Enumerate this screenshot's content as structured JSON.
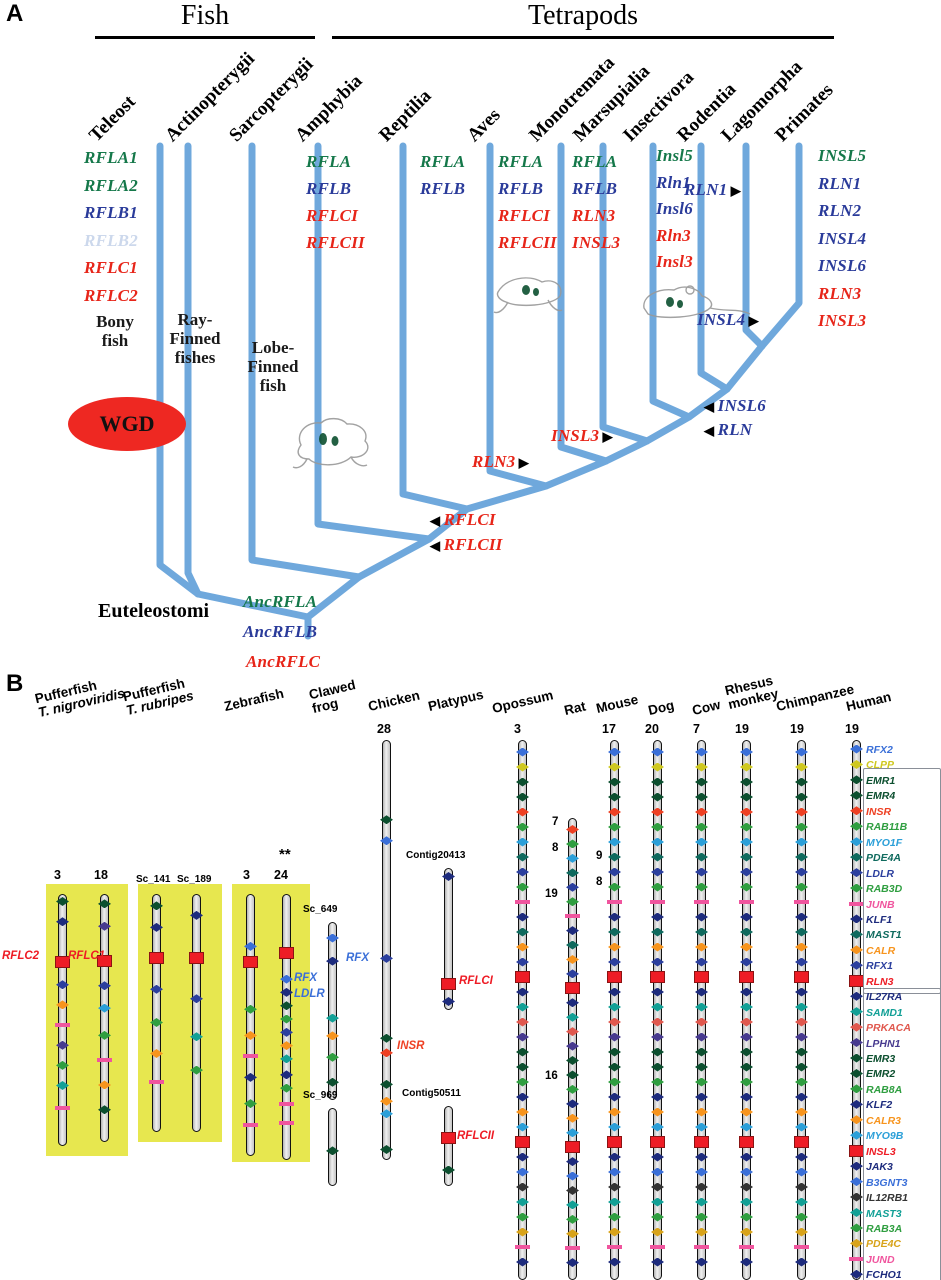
{
  "panelA": {
    "label": "A",
    "groups": [
      {
        "label": "Fish"
      },
      {
        "label": "Tetrapods"
      }
    ],
    "colors": {
      "green": "#15784a",
      "blue": "#2a3b9a",
      "red": "#e72519",
      "pale": "#ccd8ec"
    },
    "taxa": [
      "Teleost",
      "Actinopterygii",
      "Sarcopterygii",
      "Amphybia",
      "Reptilia",
      "Aves",
      "Monotremata",
      "Marsupialia",
      "Insectivora",
      "Rodentia",
      "Lagomorpha",
      "Primates"
    ],
    "gene_columns": [
      {
        "id": "teleost",
        "genes": [
          {
            "t": "RFLA1",
            "c": "green"
          },
          {
            "t": "RFLA2",
            "c": "green"
          },
          {
            "t": "RFLB1",
            "c": "blue"
          },
          {
            "t": "RFLB2",
            "c": "pale"
          },
          {
            "t": "RFLC1",
            "c": "red"
          },
          {
            "t": "RFLC2",
            "c": "red"
          }
        ]
      },
      {
        "id": "amphybia",
        "genes": [
          {
            "t": "RFLA",
            "c": "green"
          },
          {
            "t": "RFLB",
            "c": "blue"
          },
          {
            "t": "RFLCI",
            "c": "red"
          },
          {
            "t": "RFLCII",
            "c": "red"
          }
        ]
      },
      {
        "id": "reptilia",
        "genes": [
          {
            "t": "RFLA",
            "c": "green"
          },
          {
            "t": "RFLB",
            "c": "blue"
          }
        ]
      },
      {
        "id": "aves",
        "genes": [
          {
            "t": "RFLA",
            "c": "green"
          },
          {
            "t": "RFLB",
            "c": "blue"
          },
          {
            "t": "RFLCI",
            "c": "red"
          },
          {
            "t": "RFLCII",
            "c": "red"
          }
        ]
      },
      {
        "id": "marsupialia",
        "genes": [
          {
            "t": "RFLA",
            "c": "green"
          },
          {
            "t": "RFLB",
            "c": "blue"
          },
          {
            "t": "RLN3",
            "c": "red"
          },
          {
            "t": "INSL3",
            "c": "red"
          }
        ]
      },
      {
        "id": "insectivora",
        "genes": [
          {
            "t": "Insl5",
            "c": "green"
          },
          {
            "t": "Rln1",
            "c": "blue"
          },
          {
            "t": "Insl6",
            "c": "blue"
          },
          {
            "t": "Rln3",
            "c": "red"
          },
          {
            "t": "Insl3",
            "c": "red"
          }
        ]
      },
      {
        "id": "primates",
        "genes": [
          {
            "t": "INSL5",
            "c": "green"
          },
          {
            "t": "RLN1",
            "c": "blue"
          },
          {
            "t": "RLN2",
            "c": "blue"
          },
          {
            "t": "INSL4",
            "c": "blue"
          },
          {
            "t": "INSL6",
            "c": "blue"
          },
          {
            "t": "RLN3",
            "c": "red"
          },
          {
            "t": "INSL3",
            "c": "red"
          }
        ]
      }
    ],
    "annotations": [
      {
        "id": "rln1-lago",
        "t": "RLN1",
        "c": "blue",
        "arrow": "right"
      },
      {
        "id": "insl4",
        "t": "INSL4",
        "c": "blue",
        "arrow": "right"
      },
      {
        "id": "insl6",
        "t": "INSL6",
        "c": "blue",
        "arrow": "left"
      },
      {
        "id": "rln",
        "t": "RLN",
        "c": "blue",
        "arrow": "left"
      },
      {
        "id": "insl3-node",
        "t": "INSL3",
        "c": "red",
        "arrow": "right"
      },
      {
        "id": "rln3-node",
        "t": "RLN3",
        "c": "red",
        "arrow": "right"
      },
      {
        "id": "rflci-node",
        "t": "RFLCI",
        "c": "red",
        "arrow": "left"
      },
      {
        "id": "rflcii-node",
        "t": "RFLCII",
        "c": "red",
        "arrow": "left"
      },
      {
        "id": "anc-rfla",
        "t": "AncRFLA",
        "c": "green"
      },
      {
        "id": "anc-rflb",
        "t": "AncRFLB",
        "c": "blue"
      },
      {
        "id": "anc-rflc",
        "t": "AncRFLC",
        "c": "red"
      }
    ],
    "labels": {
      "wgd": "WGD",
      "euteleostomi": "Euteleostomi",
      "bony": [
        "Bony",
        "fish"
      ],
      "ray": [
        "Ray-",
        "Finned",
        "fishes"
      ],
      "lobe": [
        "Lobe-",
        "Finned",
        "fish"
      ]
    }
  },
  "panelB": {
    "label": "B",
    "palette": {
      "blue": "#2b3f9e",
      "medblue": "#3a6fd8",
      "ltblue": "#2b9fd8",
      "navy": "#1d2b7d",
      "purple": "#473a8f",
      "dkgreen": "#0c4f2f",
      "green": "#2f9e40",
      "teal": "#12a096",
      "dkteal": "#0f6a5e",
      "yellow": "#cfc820",
      "orange": "#f7941d",
      "gold": "#d8a31a",
      "red": "#ee1c25",
      "redorange": "#ee4023",
      "pink": "#f0559e",
      "salmon": "#e0584e",
      "dark": "#333333"
    },
    "human_genes": [
      {
        "n": "RFX2",
        "c": "medblue",
        "s": "d"
      },
      {
        "n": "CLPP",
        "c": "yellow",
        "s": "d"
      },
      {
        "n": "EMR1",
        "c": "dkgreen",
        "s": "d"
      },
      {
        "n": "EMR4",
        "c": "dkgreen",
        "s": "d"
      },
      {
        "n": "INSR",
        "c": "redorange",
        "s": "d"
      },
      {
        "n": "RAB11B",
        "c": "green",
        "s": "d"
      },
      {
        "n": "MYO1F",
        "c": "ltblue",
        "s": "d"
      },
      {
        "n": "PDE4A",
        "c": "dkteal",
        "s": "d"
      },
      {
        "n": "LDLR",
        "c": "blue",
        "s": "d"
      },
      {
        "n": "RAB3D",
        "c": "green",
        "s": "d"
      },
      {
        "n": "JUNB",
        "c": "pink",
        "s": "b"
      },
      {
        "n": "KLF1",
        "c": "navy",
        "s": "d"
      },
      {
        "n": "MAST1",
        "c": "dkteal",
        "s": "d"
      },
      {
        "n": "CALR",
        "c": "orange",
        "s": "d"
      },
      {
        "n": "RFX1",
        "c": "blue",
        "s": "d"
      },
      {
        "n": "RLN3",
        "c": "red",
        "s": "s"
      },
      {
        "n": "IL27RA",
        "c": "navy",
        "s": "d"
      },
      {
        "n": "SAMD1",
        "c": "teal",
        "s": "d"
      },
      {
        "n": "PRKACA",
        "c": "salmon",
        "s": "d"
      },
      {
        "n": "LPHN1",
        "c": "purple",
        "s": "d"
      },
      {
        "n": "EMR3",
        "c": "dkgreen",
        "s": "d"
      },
      {
        "n": "EMR2",
        "c": "dkgreen",
        "s": "d"
      },
      {
        "n": "RAB8A",
        "c": "green",
        "s": "d"
      },
      {
        "n": "KLF2",
        "c": "navy",
        "s": "d"
      },
      {
        "n": "CALR3",
        "c": "orange",
        "s": "d"
      },
      {
        "n": "MYO9B",
        "c": "ltblue",
        "s": "d"
      },
      {
        "n": "INSL3",
        "c": "red",
        "s": "s"
      },
      {
        "n": "JAK3",
        "c": "navy",
        "s": "d"
      },
      {
        "n": "B3GNT3",
        "c": "medblue",
        "s": "d"
      },
      {
        "n": "IL12RB1",
        "c": "dark",
        "s": "d"
      },
      {
        "n": "MAST3",
        "c": "teal",
        "s": "d"
      },
      {
        "n": "RAB3A",
        "c": "green",
        "s": "d"
      },
      {
        "n": "PDE4C",
        "c": "gold",
        "s": "d"
      },
      {
        "n": "JUND",
        "c": "pink",
        "s": "b"
      },
      {
        "n": "FCHO1",
        "c": "navy",
        "s": "d"
      }
    ],
    "species": [
      {
        "name": [
          "Pufferfish",
          "T. nigroviridis"
        ],
        "italic": 1,
        "chroms": [
          {
            "num": "3",
            "markers": [
              [
                "dkgreen",
                0.03
              ],
              [
                "navy",
                0.11
              ],
              [
                "red",
                0.27
              ],
              [
                "blue",
                0.36
              ],
              [
                "orange",
                0.44
              ],
              [
                "pink",
                0.52
              ],
              [
                "purple",
                0.6
              ],
              [
                "green",
                0.68
              ],
              [
                "teal",
                0.76
              ],
              [
                "pink",
                0.85
              ]
            ]
          },
          {
            "num": "18",
            "markers": [
              [
                "dkgreen",
                0.04
              ],
              [
                "purple",
                0.13
              ],
              [
                "red",
                0.27
              ],
              [
                "blue",
                0.37
              ],
              [
                "ltblue",
                0.46
              ],
              [
                "green",
                0.57
              ],
              [
                "pink",
                0.67
              ],
              [
                "orange",
                0.77
              ],
              [
                "dkgreen",
                0.87
              ]
            ]
          }
        ],
        "labels": [
          {
            "t": "RFLC2",
            "c": "red"
          },
          {
            "t": "RFLC1",
            "c": "red"
          }
        ]
      },
      {
        "name": [
          "Pufferfish",
          "T. rubripes"
        ],
        "italic": 1,
        "chroms": [
          {
            "num": "Sc_141",
            "markers": [
              [
                "dkgreen",
                0.05
              ],
              [
                "navy",
                0.14
              ],
              [
                "red",
                0.27
              ],
              [
                "blue",
                0.4
              ],
              [
                "green",
                0.54
              ],
              [
                "orange",
                0.67
              ],
              [
                "pink",
                0.79
              ]
            ]
          },
          {
            "num": "Sc_189",
            "markers": [
              [
                "navy",
                0.09
              ],
              [
                "red",
                0.27
              ],
              [
                "blue",
                0.44
              ],
              [
                "teal",
                0.6
              ],
              [
                "green",
                0.74
              ]
            ]
          }
        ]
      },
      {
        "name": [
          "Zebrafish"
        ],
        "italic": -1,
        "chroms": [
          {
            "num": "3",
            "markers": [
              [
                "medblue",
                0.2
              ],
              [
                "red",
                0.26
              ],
              [
                "green",
                0.44
              ],
              [
                "orange",
                0.54
              ],
              [
                "pink",
                0.62
              ],
              [
                "navy",
                0.7
              ],
              [
                "green",
                0.8
              ],
              [
                "pink",
                0.88
              ]
            ]
          },
          {
            "num": "24",
            "note": "**",
            "markers": [
              [
                "red",
                0.22
              ],
              [
                "medblue",
                0.32
              ],
              [
                "navy",
                0.37
              ],
              [
                "dkgreen",
                0.42
              ],
              [
                "green",
                0.47
              ],
              [
                "blue",
                0.52
              ],
              [
                "orange",
                0.57
              ],
              [
                "teal",
                0.62
              ],
              [
                "navy",
                0.68
              ],
              [
                "green",
                0.73
              ],
              [
                "pink",
                0.79
              ],
              [
                "pink",
                0.86
              ]
            ]
          }
        ],
        "labels": [
          {
            "t": "RFX",
            "c": "medblue"
          },
          {
            "t": "LDLR",
            "c": "medblue"
          }
        ]
      },
      {
        "name": [
          "Clawed",
          "frog"
        ],
        "italic": -1,
        "chroms": [
          {
            "num": "Sc_649",
            "markers": [
              [
                "medblue",
                0.09
              ],
              [
                "navy",
                0.22
              ],
              [
                "teal",
                0.54
              ],
              [
                "orange",
                0.64
              ],
              [
                "green",
                0.76
              ],
              [
                "dkgreen",
                0.9
              ]
            ]
          },
          {
            "num": "Sc_969",
            "markers": [
              [
                "dkgreen",
                0.55
              ]
            ]
          }
        ],
        "labels": [
          {
            "t": "RFX",
            "c": "medblue"
          }
        ]
      },
      {
        "name": [
          "Chicken"
        ],
        "italic": -1,
        "chroms": [
          {
            "num": "28",
            "markers": [
              [
                "dkgreen",
                0.19
              ],
              [
                "medblue",
                0.24
              ],
              [
                "blue",
                0.52
              ],
              [
                "dkgreen",
                0.71
              ],
              [
                "redorange",
                0.745
              ],
              [
                "dkgreen",
                0.82
              ],
              [
                "orange",
                0.86
              ],
              [
                "ltblue",
                0.89
              ],
              [
                "dkgreen",
                0.975
              ]
            ]
          }
        ],
        "labels": [
          {
            "t": "INSR",
            "c": "redorange"
          }
        ]
      },
      {
        "name": [
          "Platypus"
        ],
        "italic": -1,
        "chroms": [
          {
            "num": "Contig20413",
            "markers": [
              [
                "navy",
                0.06
              ],
              [
                "red",
                0.82
              ],
              [
                "navy",
                0.94
              ]
            ]
          },
          {
            "num": "Contig50511",
            "markers": [
              [
                "red",
                0.4
              ],
              [
                "dkgreen",
                0.8
              ]
            ]
          }
        ],
        "labels": [
          {
            "t": "RFLCI",
            "c": "red"
          },
          {
            "t": "RFLCII",
            "c": "red"
          }
        ]
      },
      {
        "name": [
          "Opossum"
        ],
        "italic": -1,
        "chroms": [
          {
            "num": "3",
            "markers": "human"
          }
        ]
      },
      {
        "name": [
          "Rat"
        ],
        "italic": -1,
        "chroms": [
          {
            "num": "",
            "markers": "human4"
          }
        ],
        "side_labels": [
          "7",
          "8",
          "19",
          "16"
        ]
      },
      {
        "name": [
          "Mouse"
        ],
        "italic": -1,
        "chroms": [
          {
            "num": "17",
            "markers": "human"
          }
        ],
        "side_labels": [
          "9",
          "8"
        ]
      },
      {
        "name": [
          "Dog"
        ],
        "italic": -1,
        "chroms": [
          {
            "num": "20",
            "markers": "human"
          }
        ]
      },
      {
        "name": [
          "Cow"
        ],
        "italic": -1,
        "chroms": [
          {
            "num": "7",
            "markers": "human"
          }
        ]
      },
      {
        "name": [
          "Rhesus",
          "monkey"
        ],
        "italic": -1,
        "chroms": [
          {
            "num": "19",
            "markers": "human"
          }
        ]
      },
      {
        "name": [
          "Chimpanzee"
        ],
        "italic": -1,
        "chroms": [
          {
            "num": "19",
            "markers": "human"
          }
        ]
      },
      {
        "name": [
          "Human"
        ],
        "italic": -1,
        "chroms": [
          {
            "num": "19",
            "markers": "human"
          }
        ],
        "align_genes": true
      }
    ]
  }
}
